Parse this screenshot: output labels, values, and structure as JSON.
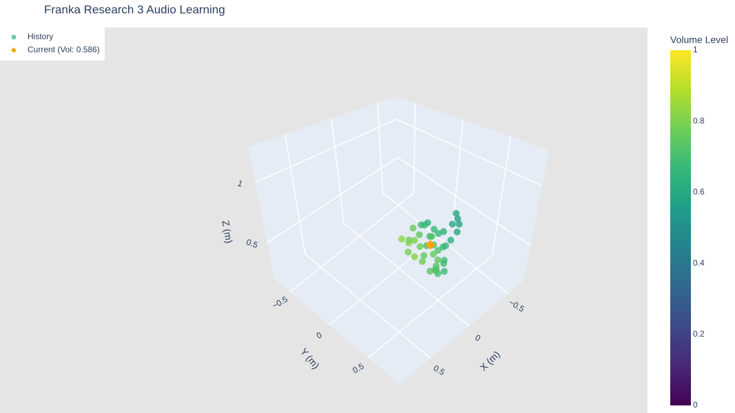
{
  "chart_data": {
    "type": "scatter3d",
    "title": "Franka Research 3 Audio Learning",
    "xlabel": "X (m)",
    "ylabel": "Y (m)",
    "zlabel": "Z (m)",
    "xlim": [
      -0.7,
      0.9
    ],
    "ylim": [
      -0.7,
      0.9
    ],
    "zlim": [
      0.2,
      1.3
    ],
    "xticks": [
      {
        "value": -0.5,
        "label": "−0.5"
      },
      0,
      0.5
    ],
    "yticks": [
      {
        "value": -0.5,
        "label": "−0.5"
      },
      0,
      0.5
    ],
    "zticks": [
      0.5,
      1
    ],
    "grid": true,
    "legend_position": "upper left",
    "colorbar": {
      "title": "Volume Level",
      "lim": [
        0,
        1
      ],
      "ticks": [
        0,
        0.2,
        0.4,
        0.6,
        0.8,
        1
      ],
      "colorscale": [
        "#440154",
        "#482878",
        "#3e4989",
        "#31688e",
        "#26828e",
        "#1f9e89",
        "#35b779",
        "#6ece58",
        "#b5de2b",
        "#fde725"
      ]
    },
    "series": [
      {
        "name": "History",
        "color": "#6fcba0",
        "x": [
          -0.35,
          -0.32,
          -0.38,
          -0.3,
          -0.28,
          -0.4,
          -0.42,
          -0.36,
          -0.25,
          -0.22,
          -0.2,
          -0.18,
          -0.15,
          -0.24,
          -0.3,
          -0.34,
          -0.28,
          -0.46,
          -0.5,
          -0.48,
          -0.44,
          -0.52,
          -0.26,
          -0.22,
          -0.2,
          -0.18,
          -0.16,
          -0.32,
          -0.1,
          -0.12,
          -0.14,
          -0.26,
          -0.33,
          -0.38,
          -0.27,
          -0.24,
          -0.37,
          -0.41,
          -0.2,
          -0.16
        ],
        "y": [
          0.15,
          0.12,
          0.18,
          0.2,
          0.16,
          0.1,
          0.14,
          0.08,
          0.1,
          0.05,
          0.0,
          -0.05,
          -0.02,
          -0.06,
          -0.02,
          0.02,
          0.04,
          0.2,
          0.22,
          0.26,
          0.28,
          0.18,
          0.22,
          0.26,
          0.3,
          0.28,
          0.24,
          0.26,
          0.02,
          0.08,
          -0.1,
          0.0,
          0.06,
          0.04,
          0.3,
          0.34,
          0.22,
          0.24,
          0.12,
          0.14
        ],
        "z": [
          0.25,
          0.3,
          0.28,
          0.22,
          0.26,
          0.35,
          0.38,
          0.4,
          0.32,
          0.3,
          0.34,
          0.3,
          0.36,
          0.4,
          0.42,
          0.44,
          0.46,
          0.46,
          0.5,
          0.48,
          0.44,
          0.52,
          0.2,
          0.21,
          0.21,
          0.24,
          0.22,
          0.24,
          0.3,
          0.28,
          0.33,
          0.36,
          0.34,
          0.3,
          0.26,
          0.23,
          0.32,
          0.36,
          0.27,
          0.25
        ],
        "values": [
          0.72,
          0.7,
          0.68,
          0.74,
          0.76,
          0.66,
          0.64,
          0.67,
          0.71,
          0.78,
          0.8,
          0.82,
          0.79,
          0.77,
          0.69,
          0.65,
          0.66,
          0.6,
          0.58,
          0.59,
          0.61,
          0.6,
          0.73,
          0.71,
          0.7,
          0.72,
          0.74,
          0.7,
          0.8,
          0.81,
          0.83,
          0.75,
          0.7,
          0.72,
          0.69,
          0.68,
          0.66,
          0.64,
          0.76,
          0.78
        ]
      },
      {
        "name": "Current (Vol: 0.586)",
        "color": "#ffa500",
        "x": [
          -0.3
        ],
        "y": [
          0.1
        ],
        "z": [
          0.3
        ],
        "values": [
          0.586
        ]
      }
    ]
  }
}
